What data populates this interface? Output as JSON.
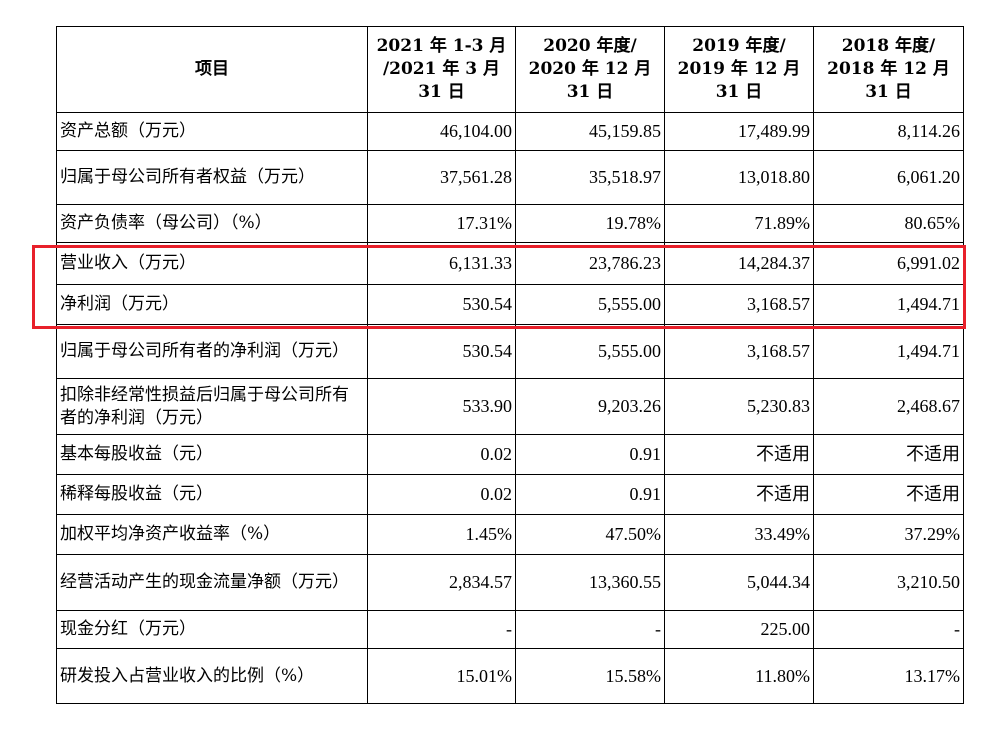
{
  "table": {
    "headers": [
      "项目",
      "2021 年 1-3 月 /2021 年 3 月 31 日",
      "2020 年度/ 2020 年 12 月 31 日",
      "2019 年度/ 2019 年 12 月 31 日",
      "2018 年度/ 2018 年 12 月 31 日"
    ],
    "rows": [
      {
        "label": "资产总额（万元）",
        "values": [
          "46,104.00",
          "45,159.85",
          "17,489.99",
          "8,114.26"
        ]
      },
      {
        "label": "归属于母公司所有者权益（万元）",
        "values": [
          "37,561.28",
          "35,518.97",
          "13,018.80",
          "6,061.20"
        ]
      },
      {
        "label": "资产负债率（母公司）（%）",
        "values": [
          "17.31%",
          "19.78%",
          "71.89%",
          "80.65%"
        ]
      },
      {
        "label": "营业收入（万元）",
        "values": [
          "6,131.33",
          "23,786.23",
          "14,284.37",
          "6,991.02"
        ]
      },
      {
        "label": "净利润（万元）",
        "values": [
          "530.54",
          "5,555.00",
          "3,168.57",
          "1,494.71"
        ]
      },
      {
        "label": "归属于母公司所有者的净利润（万元）",
        "values": [
          "530.54",
          "5,555.00",
          "3,168.57",
          "1,494.71"
        ]
      },
      {
        "label": "扣除非经常性损益后归属于母公司所有者的净利润（万元）",
        "values": [
          "533.90",
          "9,203.26",
          "5,230.83",
          "2,468.67"
        ]
      },
      {
        "label": "基本每股收益（元）",
        "values": [
          "0.02",
          "0.91",
          "不适用",
          "不适用"
        ]
      },
      {
        "label": "稀释每股收益（元）",
        "values": [
          "0.02",
          "0.91",
          "不适用",
          "不适用"
        ]
      },
      {
        "label": "加权平均净资产收益率（%）",
        "values": [
          "1.45%",
          "47.50%",
          "33.49%",
          "37.29%"
        ]
      },
      {
        "label": "经营活动产生的现金流量净额（万元）",
        "values": [
          "2,834.57",
          "13,360.55",
          "5,044.34",
          "3,210.50"
        ]
      },
      {
        "label": "现金分红（万元）",
        "values": [
          "-",
          "-",
          "225.00",
          "-"
        ]
      },
      {
        "label": "研发投入占营业收入的比例（%）",
        "values": [
          "15.01%",
          "15.58%",
          "11.80%",
          "13.17%"
        ]
      }
    ]
  },
  "highlight_color": "#e8202a"
}
